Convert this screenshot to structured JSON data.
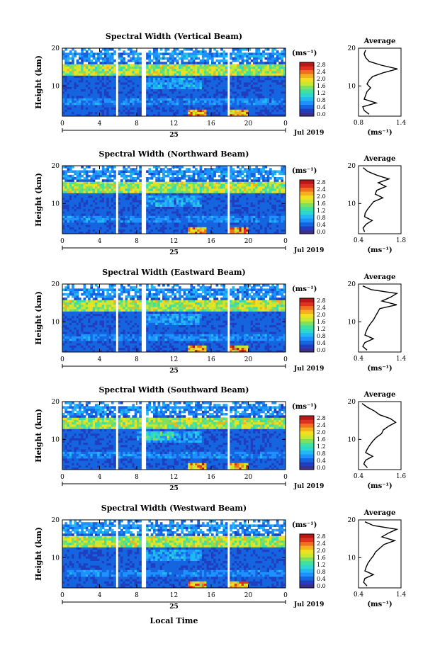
{
  "figure": {
    "x_axis_title": "Local Time",
    "date_label": "25",
    "month_label": "Jul 2019",
    "colorbar_unit": "(ms⁻¹)",
    "colorbar_ticks": [
      "2.8",
      "2.4",
      "2.0",
      "1.6",
      "1.2",
      "0.8",
      "0.4",
      "0.0"
    ],
    "colorbar_colors": [
      "#3b2f8f",
      "#1f3fc0",
      "#1565e0",
      "#1e90ff",
      "#22b8f0",
      "#2ed6d0",
      "#40e0a0",
      "#7fe060",
      "#c8e830",
      "#f2e020",
      "#f5b020",
      "#f07020",
      "#e03020",
      "#b81818"
    ],
    "ylabel": "Height (km)",
    "average_title": "Average",
    "average_xlabel": "(ms⁻¹)"
  },
  "chart_data": [
    {
      "type": "heatmap",
      "title": "Spectral Width (Vertical Beam)",
      "x_ticks": [
        "0",
        "4",
        "8",
        "12",
        "16",
        "20",
        "0"
      ],
      "y_ticks": [
        "20",
        "10"
      ],
      "xlim": [
        0,
        24
      ],
      "ylim": [
        2,
        20
      ],
      "value_range": [
        0.0,
        3.0
      ],
      "data_gaps_hours": [
        [
          5.8,
          6.1
        ],
        [
          8.4,
          8.9
        ],
        [
          17.7,
          18.0
        ]
      ],
      "average_profile": {
        "xlim": [
          0.8,
          1.4
        ],
        "x_ticks": [
          "0.8",
          "1.4"
        ],
        "y_ticks": [
          "20",
          "10"
        ],
        "height": [
          2.5,
          3.5,
          4.5,
          5.5,
          6.5,
          7.5,
          8.5,
          9.5,
          10.5,
          11.5,
          12.5,
          13.5,
          14.5,
          15.5,
          16.5,
          17.5,
          18.5,
          19.5
        ],
        "value": [
          0.95,
          0.88,
          0.86,
          1.05,
          0.88,
          0.9,
          0.92,
          0.97,
          0.92,
          0.95,
          1.0,
          1.15,
          1.35,
          1.12,
          0.95,
          0.9,
          0.88,
          0.9
        ]
      }
    },
    {
      "type": "heatmap",
      "title": "Spectral Width (Northward Beam)",
      "x_ticks": [
        "0",
        "4",
        "8",
        "12",
        "16",
        "20",
        "0"
      ],
      "y_ticks": [
        "20",
        "10"
      ],
      "xlim": [
        0,
        24
      ],
      "ylim": [
        2,
        20
      ],
      "value_range": [
        0.0,
        3.0
      ],
      "data_gaps_hours": [
        [
          5.8,
          6.1
        ],
        [
          8.4,
          8.9
        ],
        [
          17.7,
          18.0
        ]
      ],
      "average_profile": {
        "xlim": [
          0.4,
          1.8
        ],
        "x_ticks": [
          "0.4",
          "1.8"
        ],
        "y_ticks": [
          "20",
          "10"
        ],
        "height": [
          2.5,
          3.5,
          4.5,
          5.5,
          6.5,
          7.5,
          8.5,
          9.5,
          10.5,
          11.5,
          12.5,
          13.5,
          14.5,
          15.5,
          16.5,
          17.5,
          18.5,
          19.5
        ],
        "value": [
          0.6,
          0.55,
          0.65,
          0.85,
          0.6,
          0.62,
          0.7,
          0.8,
          0.9,
          1.2,
          0.95,
          1.0,
          1.3,
          1.05,
          1.4,
          1.0,
          0.7,
          0.55
        ]
      }
    },
    {
      "type": "heatmap",
      "title": "Spectral Width (Eastward Beam)",
      "x_ticks": [
        "0",
        "4",
        "8",
        "12",
        "16",
        "20",
        "0"
      ],
      "y_ticks": [
        "20",
        "10"
      ],
      "xlim": [
        0,
        24
      ],
      "ylim": [
        2,
        20
      ],
      "value_range": [
        0.0,
        3.0
      ],
      "data_gaps_hours": [
        [
          5.8,
          6.1
        ],
        [
          8.4,
          8.9
        ],
        [
          17.7,
          18.0
        ]
      ],
      "average_profile": {
        "xlim": [
          0.4,
          1.4
        ],
        "x_ticks": [
          "0.4",
          "1.4"
        ],
        "y_ticks": [
          "20",
          "10"
        ],
        "height": [
          2.5,
          3.5,
          4.5,
          5.5,
          6.5,
          7.5,
          8.5,
          9.5,
          10.5,
          11.5,
          12.5,
          13.5,
          14.5,
          15.5,
          16.5,
          17.5,
          18.5,
          19.5
        ],
        "value": [
          0.6,
          0.5,
          0.55,
          0.75,
          0.55,
          0.58,
          0.62,
          0.68,
          0.75,
          0.8,
          0.85,
          0.9,
          1.3,
          0.95,
          1.15,
          1.3,
          0.7,
          0.5
        ]
      }
    },
    {
      "type": "heatmap",
      "title": "Spectral Width (Southward Beam)",
      "x_ticks": [
        "0",
        "4",
        "8",
        "12",
        "16",
        "20",
        "0"
      ],
      "y_ticks": [
        "20",
        "10"
      ],
      "xlim": [
        0,
        24
      ],
      "ylim": [
        2,
        20
      ],
      "value_range": [
        0.0,
        3.0
      ],
      "data_gaps_hours": [
        [
          5.8,
          6.1
        ],
        [
          8.4,
          8.9
        ],
        [
          17.7,
          18.0
        ]
      ],
      "average_profile": {
        "xlim": [
          0.4,
          1.6
        ],
        "x_ticks": [
          "0.4",
          "1.6"
        ],
        "y_ticks": [
          "20",
          "10"
        ],
        "height": [
          2.5,
          3.5,
          4.5,
          5.5,
          6.5,
          7.5,
          8.5,
          9.5,
          10.5,
          11.5,
          12.5,
          13.5,
          14.5,
          15.5,
          16.5,
          17.5,
          18.5,
          19.5
        ],
        "value": [
          0.65,
          0.55,
          0.6,
          0.8,
          0.6,
          0.65,
          0.72,
          0.8,
          0.9,
          1.05,
          1.1,
          1.25,
          1.45,
          1.3,
          1.0,
          0.85,
          0.65,
          0.5
        ]
      }
    },
    {
      "type": "heatmap",
      "title": "Spectral Width (Westward Beam)",
      "x_ticks": [
        "0",
        "4",
        "8",
        "12",
        "16",
        "20",
        "0"
      ],
      "y_ticks": [
        "20",
        "10"
      ],
      "xlim": [
        0,
        24
      ],
      "ylim": [
        2,
        20
      ],
      "value_range": [
        0.0,
        3.0
      ],
      "data_gaps_hours": [
        [
          5.8,
          6.1
        ],
        [
          8.4,
          8.9
        ],
        [
          17.7,
          18.0
        ]
      ],
      "average_profile": {
        "xlim": [
          0.4,
          1.4
        ],
        "x_ticks": [
          "0.4",
          "1.4"
        ],
        "y_ticks": [
          "20",
          "10"
        ],
        "height": [
          2.5,
          3.5,
          4.5,
          5.5,
          6.5,
          7.5,
          8.5,
          9.5,
          10.5,
          11.5,
          12.5,
          13.5,
          14.5,
          15.5,
          16.5,
          17.5,
          18.5,
          19.5
        ],
        "value": [
          0.6,
          0.52,
          0.55,
          0.75,
          0.55,
          0.58,
          0.62,
          0.68,
          0.75,
          0.8,
          0.9,
          1.0,
          1.25,
          0.95,
          1.1,
          1.3,
          0.75,
          0.55
        ]
      }
    }
  ]
}
